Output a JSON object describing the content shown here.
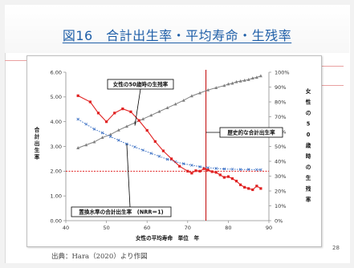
{
  "slide": {
    "title": "図16　合計出生率・平均寿命・生残率",
    "source": "出典：Hara（2020）より作図",
    "page_number": "28"
  },
  "colors": {
    "title": "#1f5fa8",
    "tfr": "#e02020",
    "survival": "#808080",
    "replacement_curve": "#3a6fc4",
    "replacement_line": "#e02020",
    "historical_line": "#c00000"
  },
  "chart_data": {
    "type": "line",
    "xlabel": "女性の平均寿命　単位　年",
    "ylabel": "合計出生率",
    "y2label": "女性の50歳時の生残率",
    "xlim": [
      40,
      90
    ],
    "ylim": [
      0,
      6
    ],
    "y2lim": [
      0,
      100
    ],
    "x_ticks": [
      "40",
      "50",
      "60",
      "70",
      "80",
      "90"
    ],
    "y_ticks": [
      "0.00",
      "1.00",
      "2.00",
      "3.00",
      "4.00",
      "5.00",
      "6.00"
    ],
    "y2_ticks": [
      "0%",
      "10%",
      "20%",
      "30%",
      "40%",
      "50%",
      "60%",
      "70%",
      "80%",
      "90%",
      "100%"
    ],
    "series": [
      {
        "name": "女性の50歳時の生残率",
        "axis": "right",
        "style": "line-triangle",
        "x": [
          43,
          45,
          47,
          49,
          51,
          53,
          55,
          57,
          59,
          61,
          63,
          65,
          67,
          69,
          71,
          73,
          75,
          77,
          79,
          80,
          81,
          82,
          83,
          84,
          85,
          86,
          87,
          88
        ],
        "y": [
          49,
          51,
          53,
          56,
          58,
          61,
          63.5,
          66,
          68.5,
          71,
          73.5,
          76,
          78.5,
          81,
          84,
          86,
          88,
          89.5,
          91,
          92,
          92.5,
          93.5,
          94,
          94.5,
          95,
          96,
          96.5,
          97.5
        ]
      },
      {
        "name": "歴史的な合計出生率",
        "axis": "left",
        "style": "line-square",
        "x": [
          43,
          46,
          48,
          50,
          52,
          54,
          56,
          58,
          60,
          62,
          64,
          66,
          68,
          70,
          71,
          72,
          73,
          74,
          75,
          76,
          77,
          78,
          79,
          80,
          81,
          82,
          83,
          84,
          85,
          86,
          87,
          88
        ],
        "y": [
          5.05,
          4.8,
          4.35,
          4.0,
          4.35,
          4.52,
          4.4,
          4.05,
          3.65,
          3.2,
          2.82,
          2.5,
          2.2,
          2.0,
          1.92,
          2.02,
          2.0,
          2.1,
          2.05,
          1.98,
          1.95,
          1.85,
          1.75,
          1.78,
          1.7,
          1.6,
          1.45,
          1.35,
          1.3,
          1.25,
          1.4,
          1.3
        ]
      },
      {
        "name": "置換水準の合計出生率　(NRR＝1)",
        "axis": "left",
        "style": "dotted-cross",
        "x": [
          43,
          45,
          47,
          49,
          51,
          53,
          55,
          57,
          59,
          61,
          63,
          65,
          67,
          69,
          71,
          73,
          75,
          77,
          79,
          81,
          83,
          85,
          87,
          88
        ],
        "y": [
          4.1,
          3.9,
          3.7,
          3.55,
          3.4,
          3.25,
          3.1,
          2.98,
          2.85,
          2.72,
          2.6,
          2.48,
          2.38,
          2.3,
          2.24,
          2.18,
          2.14,
          2.11,
          2.09,
          2.08,
          2.07,
          2.07,
          2.06,
          2.06
        ]
      }
    ],
    "reference_lines": [
      {
        "orientation": "horizontal",
        "axis": "left",
        "value": 2.0,
        "color_key": "replacement_line",
        "style": "dotted"
      },
      {
        "orientation": "vertical",
        "value": 74.5,
        "color_key": "historical_line",
        "style": "solid"
      }
    ],
    "annotations": [
      {
        "label": "女性の50歳時の生残率",
        "points_to": "survival"
      },
      {
        "label": "歴史的な合計出生率",
        "points_to": "historical"
      },
      {
        "label": "置換水準の合計出生率　(NRR＝1)",
        "points_to": "replacement"
      }
    ],
    "grid": false,
    "legend": "none"
  }
}
